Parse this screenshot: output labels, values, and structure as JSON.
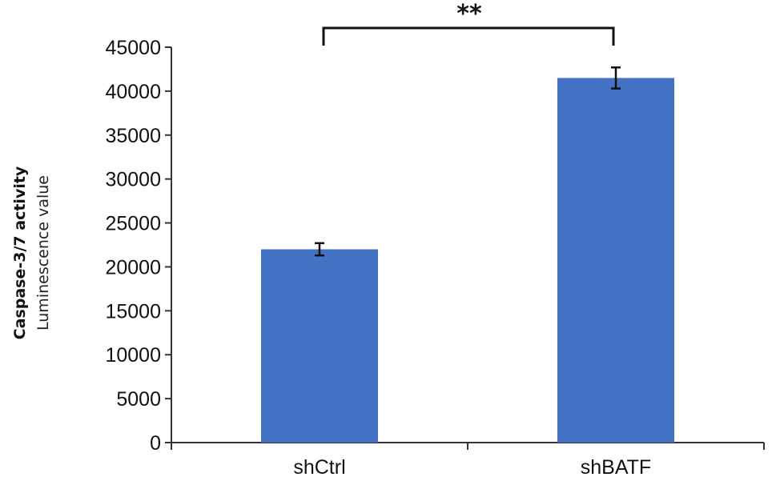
{
  "chart_data": {
    "type": "bar",
    "categories": [
      "shCtrl",
      "shBATF"
    ],
    "values": [
      22000,
      41500
    ],
    "error": [
      700,
      1200
    ],
    "ylabel": "Caspase-3/7 activity",
    "ylabel_sub": "Luminescence value",
    "ylim": [
      0,
      45000
    ],
    "yticks": [
      0,
      5000,
      10000,
      15000,
      20000,
      25000,
      30000,
      35000,
      40000,
      45000
    ],
    "grid": false,
    "bar_color": "#4472C4",
    "annotation": "**"
  }
}
